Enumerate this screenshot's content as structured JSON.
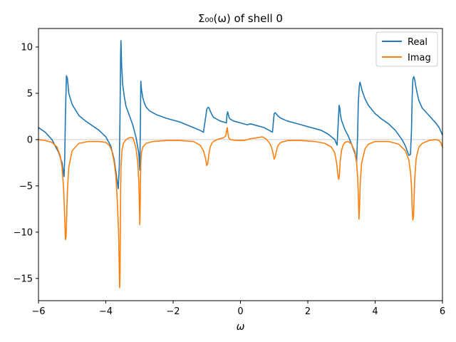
{
  "chart_data": {
    "type": "line",
    "title": "Σ₀₀(ω) of shell 0",
    "xlabel": "ω",
    "ylabel": "",
    "xlim": [
      -6,
      6
    ],
    "ylim": [
      -17.4,
      12
    ],
    "xticks": [
      -6,
      -4,
      -2,
      0,
      2,
      4,
      6
    ],
    "xtick_labels": [
      "−6",
      "−4",
      "−2",
      "0",
      "2",
      "4",
      "6"
    ],
    "yticks": [
      -15,
      -10,
      -5,
      0,
      5,
      10
    ],
    "ytick_labels": [
      "−15",
      "−10",
      "−5",
      "0",
      "5",
      "10"
    ],
    "grid": false,
    "legend_position": "top-right",
    "zero_line": true,
    "series": [
      {
        "name": "Real",
        "color": "#1f77b4",
        "x": [
          -6.0,
          -5.8,
          -5.6,
          -5.4,
          -5.3,
          -5.24,
          -5.22,
          -5.2,
          -5.17,
          -5.14,
          -5.1,
          -5.0,
          -4.8,
          -4.6,
          -4.4,
          -4.2,
          -4.0,
          -3.85,
          -3.75,
          -3.68,
          -3.63,
          -3.6,
          -3.58,
          -3.56,
          -3.55,
          -3.53,
          -3.5,
          -3.45,
          -3.4,
          -3.3,
          -3.2,
          -3.1,
          -3.02,
          -2.99,
          -2.97,
          -2.96,
          -2.94,
          -2.9,
          -2.85,
          -2.8,
          -2.7,
          -2.5,
          -2.2,
          -2.0,
          -1.8,
          -1.6,
          -1.4,
          -1.2,
          -1.1,
          -1.05,
          -1.0,
          -0.96,
          -0.93,
          -0.9,
          -0.85,
          -0.8,
          -0.7,
          -0.6,
          -0.5,
          -0.42,
          -0.4,
          -0.38,
          -0.36,
          -0.34,
          -0.3,
          -0.2,
          0.0,
          0.2,
          0.3,
          0.5,
          0.7,
          0.85,
          0.95,
          0.98,
          1.0,
          1.03,
          1.06,
          1.1,
          1.2,
          1.4,
          1.6,
          1.8,
          2.0,
          2.2,
          2.4,
          2.6,
          2.8,
          2.87,
          2.9,
          2.93,
          2.95,
          2.97,
          3.0,
          3.05,
          3.1,
          3.2,
          3.3,
          3.4,
          3.45,
          3.48,
          3.5,
          3.53,
          3.55,
          3.58,
          3.62,
          3.7,
          3.8,
          4.0,
          4.2,
          4.4,
          4.6,
          4.8,
          4.9,
          5.0,
          5.05,
          5.08,
          5.1,
          5.12,
          5.15,
          5.18,
          5.2,
          5.25,
          5.3,
          5.4,
          5.6,
          5.8,
          5.9,
          5.95,
          6.0
        ],
        "values": [
          1.3,
          0.8,
          0.0,
          -1.4,
          -2.5,
          -4.0,
          -2.0,
          2.5,
          6.9,
          6.6,
          5.0,
          3.8,
          2.6,
          2.0,
          1.5,
          1.0,
          0.3,
          -0.7,
          -2.2,
          -4.0,
          -5.3,
          -3.0,
          2.0,
          9.0,
          10.7,
          8.0,
          6.0,
          4.6,
          3.6,
          2.6,
          1.6,
          0.2,
          -1.5,
          -3.3,
          2.5,
          6.3,
          5.4,
          4.5,
          3.9,
          3.5,
          3.1,
          2.7,
          2.3,
          2.1,
          1.9,
          1.6,
          1.3,
          1.0,
          0.8,
          2.0,
          3.3,
          3.5,
          3.4,
          3.1,
          2.7,
          2.4,
          2.2,
          2.0,
          1.9,
          1.8,
          2.7,
          3.0,
          2.7,
          2.4,
          2.2,
          2.0,
          1.8,
          1.6,
          1.7,
          1.5,
          1.3,
          1.0,
          0.8,
          2.0,
          2.8,
          2.9,
          2.8,
          2.6,
          2.3,
          2.0,
          1.8,
          1.6,
          1.4,
          1.2,
          1.0,
          0.6,
          0.0,
          -0.6,
          1.5,
          3.7,
          3.4,
          2.7,
          2.1,
          1.6,
          1.1,
          0.4,
          -0.5,
          -1.5,
          -2.4,
          0.5,
          4.0,
          5.8,
          6.2,
          5.8,
          5.2,
          4.4,
          3.7,
          2.8,
          2.2,
          1.7,
          1.0,
          0.0,
          -0.7,
          -1.7,
          -1.6,
          1.0,
          4.5,
          6.5,
          6.8,
          6.4,
          5.9,
          5.0,
          4.2,
          3.4,
          2.6,
          1.8,
          1.3,
          0.9,
          0.5
        ],
        "line_end_x": 6.0
      },
      {
        "name": "Imag",
        "color": "#ff7f0e",
        "x": [
          -6.0,
          -5.8,
          -5.6,
          -5.45,
          -5.35,
          -5.3,
          -5.25,
          -5.22,
          -5.2,
          -5.18,
          -5.16,
          -5.14,
          -5.1,
          -5.0,
          -4.8,
          -4.5,
          -4.2,
          -4.0,
          -3.9,
          -3.82,
          -3.75,
          -3.7,
          -3.66,
          -3.62,
          -3.6,
          -3.59,
          -3.58,
          -3.57,
          -3.56,
          -3.55,
          -3.52,
          -3.48,
          -3.4,
          -3.3,
          -3.2,
          -3.15,
          -3.1,
          -3.05,
          -3.02,
          -3.0,
          -2.99,
          -2.98,
          -2.97,
          -2.96,
          -2.94,
          -2.9,
          -2.8,
          -2.6,
          -2.2,
          -1.8,
          -1.4,
          -1.2,
          -1.1,
          -1.04,
          -1.0,
          -0.97,
          -0.94,
          -0.9,
          -0.85,
          -0.8,
          -0.7,
          -0.6,
          -0.5,
          -0.44,
          -0.41,
          -0.39,
          -0.37,
          -0.35,
          -0.3,
          -0.1,
          0.1,
          0.3,
          0.5,
          0.65,
          0.75,
          0.85,
          0.92,
          0.97,
          1.0,
          1.03,
          1.07,
          1.12,
          1.2,
          1.4,
          1.8,
          2.2,
          2.5,
          2.7,
          2.8,
          2.86,
          2.9,
          2.92,
          2.94,
          2.96,
          3.0,
          3.05,
          3.1,
          3.2,
          3.3,
          3.4,
          3.45,
          3.48,
          3.5,
          3.52,
          3.54,
          3.56,
          3.6,
          3.7,
          3.8,
          4.0,
          4.4,
          4.7,
          4.9,
          5.0,
          5.05,
          5.08,
          5.1,
          5.12,
          5.14,
          5.16,
          5.18,
          5.22,
          5.3,
          5.4,
          5.6,
          5.8,
          5.9,
          5.95,
          6.0
        ],
        "values": [
          0.0,
          -0.1,
          -0.3,
          -0.8,
          -1.8,
          -3.0,
          -5.5,
          -8.5,
          -10.8,
          -10.5,
          -8.0,
          -5.5,
          -3.0,
          -1.2,
          -0.4,
          -0.2,
          -0.2,
          -0.3,
          -0.6,
          -1.2,
          -2.5,
          -4.0,
          -6.5,
          -10.0,
          -14.0,
          -16.0,
          -15.0,
          -11.0,
          -6.0,
          -3.0,
          -1.2,
          -0.4,
          0.0,
          0.2,
          0.2,
          -0.3,
          -1.0,
          -2.5,
          -4.5,
          -7.5,
          -9.2,
          -7.5,
          -4.5,
          -2.5,
          -1.4,
          -0.8,
          -0.4,
          -0.2,
          -0.1,
          -0.1,
          -0.2,
          -0.6,
          -1.2,
          -2.0,
          -2.8,
          -2.6,
          -1.6,
          -0.8,
          -0.4,
          -0.2,
          0.0,
          0.1,
          0.2,
          0.4,
          1.0,
          1.3,
          0.6,
          0.2,
          0.0,
          -0.1,
          -0.1,
          0.1,
          0.2,
          0.3,
          0.1,
          -0.3,
          -0.8,
          -1.5,
          -2.1,
          -1.9,
          -1.2,
          -0.6,
          -0.3,
          -0.1,
          -0.1,
          -0.2,
          -0.4,
          -0.8,
          -1.4,
          -2.6,
          -4.0,
          -4.3,
          -3.8,
          -2.4,
          -1.2,
          -0.6,
          -0.3,
          -0.2,
          -0.5,
          -1.3,
          -2.5,
          -4.0,
          -6.0,
          -8.6,
          -7.0,
          -4.5,
          -2.5,
          -1.0,
          -0.5,
          -0.2,
          -0.2,
          -0.5,
          -1.2,
          -2.2,
          -3.5,
          -5.0,
          -7.5,
          -8.7,
          -8.3,
          -6.0,
          -4.0,
          -2.0,
          -0.8,
          -0.4,
          -0.1,
          0.0,
          -0.1,
          -0.3,
          -0.8
        ]
      }
    ]
  },
  "legend": {
    "items": [
      {
        "label": "Real",
        "color": "#1f77b4"
      },
      {
        "label": "Imag",
        "color": "#ff7f0e"
      }
    ]
  }
}
